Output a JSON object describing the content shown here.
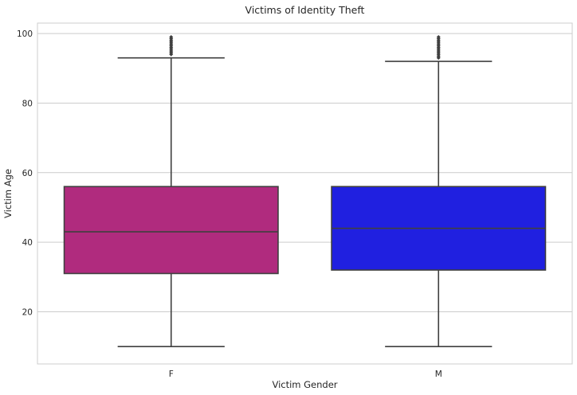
{
  "chart_data": {
    "type": "boxplot",
    "title": "Victims of Identity Theft",
    "xlabel": "Victim Gender",
    "ylabel": "Victim Age",
    "ylim": [
      5,
      103
    ],
    "yticks": [
      20,
      40,
      60,
      80,
      100
    ],
    "grid": true,
    "categories": [
      "F",
      "M"
    ],
    "boxes": [
      {
        "category": "F",
        "color": "#b02b7e",
        "whisker_low": 10,
        "q1": 31,
        "median": 43,
        "q3": 56,
        "whisker_high": 93,
        "outliers": [
          94,
          94.5,
          95,
          95.5,
          96,
          96.5,
          97,
          97.5,
          98,
          98.5,
          99
        ]
      },
      {
        "category": "M",
        "color": "#2020e0",
        "whisker_low": 10,
        "q1": 32,
        "median": 44,
        "q3": 56,
        "whisker_high": 92,
        "outliers": [
          93,
          93.5,
          94,
          94.5,
          95,
          95.5,
          96,
          96.5,
          97,
          97.5,
          98,
          98.5,
          99
        ]
      }
    ]
  }
}
